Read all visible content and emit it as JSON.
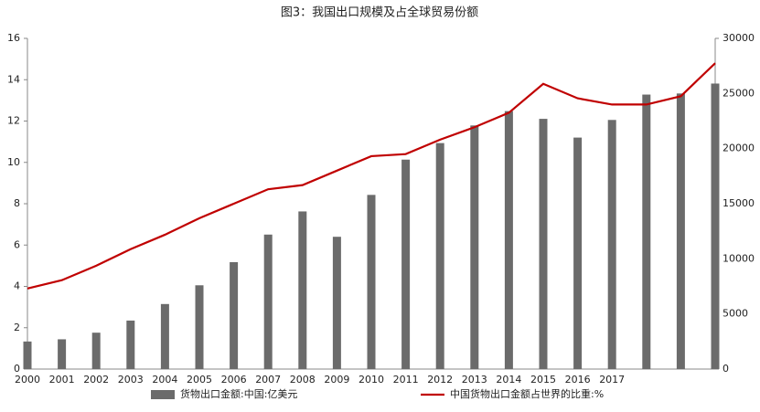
{
  "chart_data": {
    "type": "bar-line",
    "title": "图3：我国出口规模及占全球贸易份额",
    "categories": [
      "2000",
      "2001",
      "2002",
      "2003",
      "2004",
      "2005",
      "2006",
      "2007",
      "2008",
      "2009",
      "2010",
      "2011",
      "2012",
      "2013",
      "2014",
      "2015",
      "2016",
      "2017",
      null,
      null,
      null
    ],
    "series": [
      {
        "name": "货物出口金额:中国:亿美元",
        "type": "bar",
        "axis": "y2",
        "color": "#6b6b6b",
        "values": [
          2500,
          2700,
          3300,
          4400,
          5900,
          7600,
          9700,
          12200,
          14300,
          12000,
          15800,
          19000,
          20500,
          22100,
          23400,
          22700,
          21000,
          22600,
          24900,
          25000,
          25900
        ]
      },
      {
        "name": "中国货物出口金额占世界的比重:%",
        "type": "line",
        "axis": "y",
        "color": "#c00000",
        "values": [
          3.9,
          4.3,
          5.0,
          5.8,
          6.5,
          7.3,
          8.0,
          8.7,
          8.9,
          9.6,
          10.3,
          10.4,
          11.1,
          11.7,
          12.4,
          13.8,
          13.1,
          12.8,
          12.8,
          13.2,
          14.8
        ]
      }
    ],
    "ylim": [
      0,
      16
    ],
    "yticks": [
      0,
      2,
      4,
      6,
      8,
      10,
      12,
      14,
      16
    ],
    "y2lim": [
      0,
      30000
    ],
    "y2ticks": [
      0,
      5000,
      10000,
      15000,
      20000,
      25000,
      30000
    ],
    "legend": "bottom"
  }
}
